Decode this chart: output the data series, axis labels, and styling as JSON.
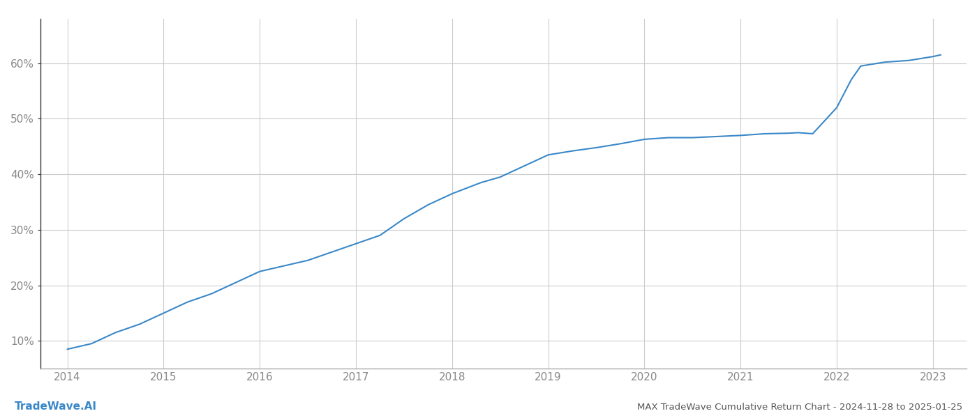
{
  "x_values": [
    2014.0,
    2014.25,
    2014.5,
    2014.75,
    2015.0,
    2015.25,
    2015.5,
    2015.75,
    2016.0,
    2016.25,
    2016.5,
    2016.75,
    2017.0,
    2017.25,
    2017.5,
    2017.75,
    2018.0,
    2018.15,
    2018.3,
    2018.5,
    2018.75,
    2019.0,
    2019.25,
    2019.5,
    2019.75,
    2020.0,
    2020.25,
    2020.5,
    2020.75,
    2021.0,
    2021.25,
    2021.5,
    2021.6,
    2021.75,
    2022.0,
    2022.15,
    2022.25,
    2022.5,
    2022.75,
    2023.0,
    2023.08
  ],
  "y_values": [
    8.5,
    9.5,
    11.5,
    13.0,
    15.0,
    17.0,
    18.5,
    20.5,
    22.5,
    23.5,
    24.5,
    26.0,
    27.5,
    29.0,
    32.0,
    34.5,
    36.5,
    37.5,
    38.5,
    39.5,
    41.5,
    43.5,
    44.2,
    44.8,
    45.5,
    46.3,
    46.6,
    46.6,
    46.8,
    47.0,
    47.3,
    47.4,
    47.5,
    47.3,
    52.0,
    57.0,
    59.5,
    60.2,
    60.5,
    61.2,
    61.5
  ],
  "line_color": "#3a88c8",
  "line_width": 1.5,
  "background_color": "#ffffff",
  "grid_color": "#cccccc",
  "title": "MAX TradeWave Cumulative Return Chart - 2024-11-28 to 2025-01-25",
  "watermark": "TradeWave.AI",
  "yticks": [
    10,
    20,
    30,
    40,
    50,
    60
  ],
  "xlim": [
    2013.72,
    2023.35
  ],
  "ylim": [
    5,
    68
  ],
  "xticks": [
    2014,
    2015,
    2016,
    2017,
    2018,
    2019,
    2020,
    2021,
    2022,
    2023
  ],
  "tick_label_color": "#888888",
  "title_color": "#555555",
  "watermark_color": "#3a88c8",
  "left_spine_color": "#333333",
  "bottom_spine_color": "#aaaaaa",
  "figsize": [
    14.0,
    6.0
  ],
  "dpi": 100
}
